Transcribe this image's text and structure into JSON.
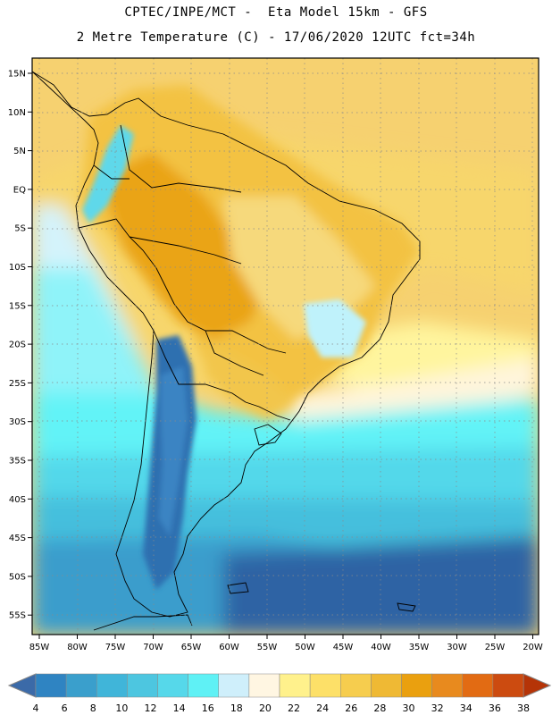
{
  "header": {
    "line1": "CPTEC/INPE/MCT -  Eta Model 15km - GFS",
    "line2": "2 Metre Temperature (C) - 17/06/2020 12UTC fct=34h"
  },
  "axes": {
    "lat_labels": [
      "15N",
      "10N",
      "5N",
      "EQ",
      "5S",
      "10S",
      "15S",
      "20S",
      "25S",
      "30S",
      "35S",
      "40S",
      "45S",
      "50S",
      "55S"
    ],
    "lon_labels": [
      "85W",
      "80W",
      "75W",
      "70W",
      "65W",
      "60W",
      "55W",
      "50W",
      "45W",
      "40W",
      "35W",
      "30W",
      "25W",
      "20W"
    ]
  },
  "colorbar": {
    "labels": [
      "4",
      "6",
      "8",
      "10",
      "12",
      "14",
      "16",
      "18",
      "20",
      "22",
      "24",
      "26",
      "28",
      "30",
      "32",
      "34",
      "36",
      "38"
    ],
    "colors": [
      "#3b6aa8",
      "#2f84c2",
      "#3a9fcc",
      "#40b5d9",
      "#4dc6e0",
      "#56d8ea",
      "#5ff1f5",
      "#cfeffb",
      "#fff6e2",
      "#fff18c",
      "#fde068",
      "#f6cd4e",
      "#efb934",
      "#eaa00f",
      "#e88a1e",
      "#e26b13",
      "#cc4b10",
      "#b53407"
    ]
  },
  "chart_data": {
    "type": "heatmap",
    "title": "2 Metre Temperature (C) - 17/06/2020 12UTC fct=34h",
    "source": "CPTEC/INPE/MCT - Eta Model 15km - GFS",
    "variable": "2 Metre Temperature",
    "units": "C",
    "lon_range": [
      -85,
      -20
    ],
    "lat_range": [
      -58,
      17
    ],
    "scale_ticks": [
      4,
      6,
      8,
      10,
      12,
      14,
      16,
      18,
      20,
      22,
      24,
      26,
      28,
      30,
      32,
      34,
      36,
      38
    ]
  }
}
